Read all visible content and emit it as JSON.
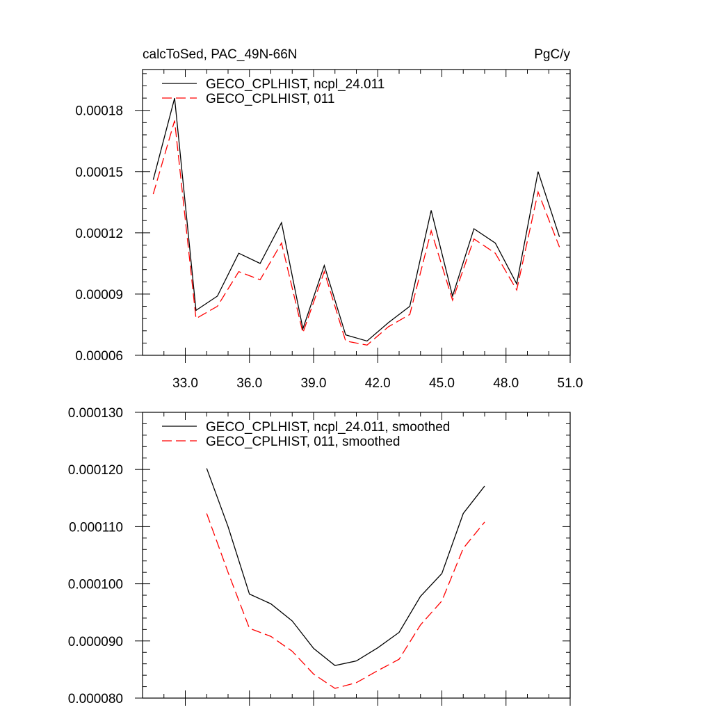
{
  "colors": {
    "series1": "#000000",
    "series2": "#ff0000",
    "frame": "#000000"
  },
  "chart_data": [
    {
      "type": "line",
      "title": "calcToSed, PAC_49N-66N",
      "units": "PgC/y",
      "xlim": [
        31,
        51
      ],
      "ylim": [
        6e-05,
        0.0002
      ],
      "x_ticks": [
        "33.0",
        "36.0",
        "39.0",
        "42.0",
        "45.0",
        "48.0",
        "51.0"
      ],
      "y_ticks": [
        "0.00006",
        "0.00009",
        "0.00012",
        "0.00015",
        "0.00018"
      ],
      "x": [
        31.5,
        32.5,
        33.5,
        34.5,
        35.5,
        36.5,
        37.5,
        38.5,
        39.5,
        40.5,
        41.5,
        42.5,
        43.5,
        44.5,
        45.5,
        46.5,
        47.5,
        48.5,
        49.5,
        50.5
      ],
      "series": [
        {
          "name": "GECO_CPLHIST, ncpl_24.011",
          "style": "solid",
          "color": "#000000",
          "values": [
            0.000146,
            0.000186,
            8.2e-05,
            8.9e-05,
            0.00011,
            0.000105,
            0.000125,
            7.3e-05,
            0.000104,
            7e-05,
            6.7e-05,
            7.6e-05,
            8.4e-05,
            0.000131,
            8.9e-05,
            0.000122,
            0.000115,
            9.5e-05,
            0.00015,
            0.000118
          ]
        },
        {
          "name": "GECO_CPLHIST, 011",
          "style": "dashed",
          "color": "#ff0000",
          "values": [
            0.000139,
            0.000175,
            7.8e-05,
            8.4e-05,
            0.000101,
            9.7e-05,
            0.000115,
            7.1e-05,
            0.000101,
            6.7e-05,
            6.5e-05,
            7.4e-05,
            8e-05,
            0.000121,
            8.7e-05,
            0.000117,
            0.00011,
            9.2e-05,
            0.00014,
            0.000113
          ]
        }
      ],
      "legend": "top-left"
    },
    {
      "type": "line",
      "xlim": [
        31,
        51
      ],
      "ylim": [
        8e-05,
        0.00013
      ],
      "y_ticks": [
        "0.000080",
        "0.000090",
        "0.000100",
        "0.000110",
        "0.000120",
        "0.000130"
      ],
      "x": [
        34,
        35,
        36,
        37,
        38,
        39,
        40,
        41,
        42,
        43,
        44,
        45,
        46,
        47
      ],
      "series": [
        {
          "name": "GECO_CPLHIST, ncpl_24.011, smoothed",
          "style": "solid",
          "color": "#000000",
          "values": [
            0.0001202,
            0.00011,
            9.82e-05,
            9.65e-05,
            9.35e-05,
            8.87e-05,
            8.57e-05,
            8.65e-05,
            8.88e-05,
            9.15e-05,
            9.78e-05,
            0.0001018,
            0.0001123,
            0.0001171
          ]
        },
        {
          "name": "GECO_CPLHIST, 011, smoothed",
          "style": "dashed",
          "color": "#ff0000",
          "values": [
            0.0001123,
            0.000102,
            9.22e-05,
            9.08e-05,
            8.82e-05,
            8.42e-05,
            8.17e-05,
            8.27e-05,
            8.48e-05,
            8.68e-05,
            9.28e-05,
            9.7e-05,
            0.0001062,
            0.0001108
          ]
        }
      ],
      "legend": "top-left"
    }
  ]
}
